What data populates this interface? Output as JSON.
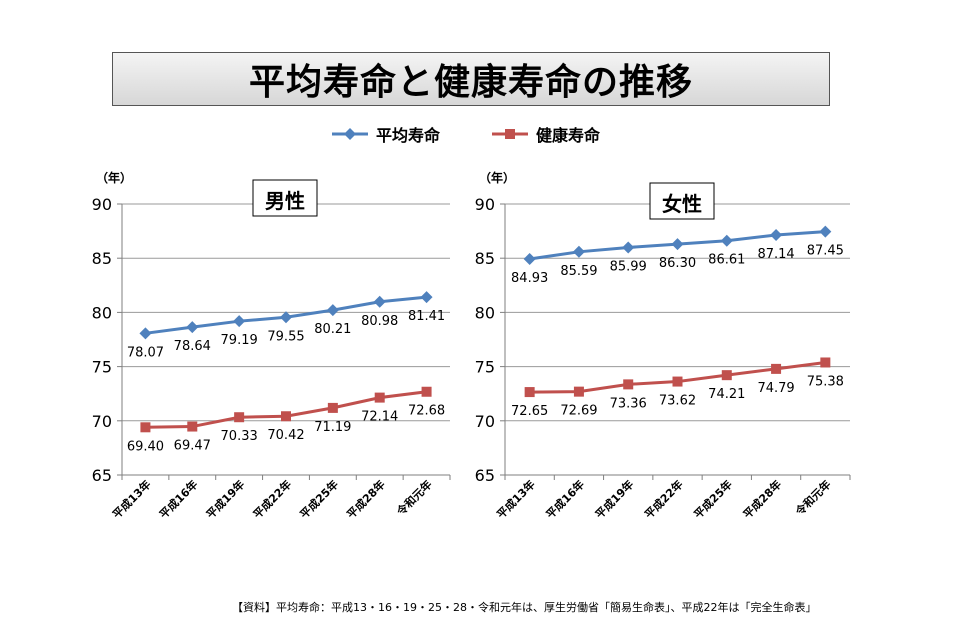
{
  "title": "平均寿命と健康寿命の推移",
  "legend": [
    {
      "label": "平均寿命",
      "color": "#4f81bd",
      "marker": "diamond"
    },
    {
      "label": "健康寿命",
      "color": "#c0504d",
      "marker": "square"
    }
  ],
  "footnote": "【資料】平均寿命：平成13・16・19・25・28・令和元年は、厚生労働省「簡易生命表」、平成22年は「完全生命表」",
  "chart_data": [
    {
      "type": "line",
      "title": "男性",
      "ylabel": "（年）",
      "ylim": [
        65,
        90
      ],
      "yticks": [
        "65",
        "70",
        "75",
        "80",
        "85",
        "90"
      ],
      "categories": [
        "平成13年",
        "平成16年",
        "平成19年",
        "平成22年",
        "平成25年",
        "平成28年",
        "令和元年"
      ],
      "series": [
        {
          "name": "平均寿命",
          "color": "#4f81bd",
          "marker": "diamond",
          "values": [
            78.07,
            78.64,
            79.19,
            79.55,
            80.21,
            80.98,
            81.41
          ],
          "labels": [
            "78.07",
            "78.64",
            "79.19",
            "79.55",
            "80.21",
            "80.98",
            "81.41"
          ]
        },
        {
          "name": "健康寿命",
          "color": "#c0504d",
          "marker": "square",
          "values": [
            69.4,
            69.47,
            70.33,
            70.42,
            71.19,
            72.14,
            72.68
          ],
          "labels": [
            "69.40",
            "69.47",
            "70.33",
            "70.42",
            "71.19",
            "72.14",
            "72.68"
          ]
        }
      ]
    },
    {
      "type": "line",
      "title": "女性",
      "ylabel": "（年）",
      "ylim": [
        65,
        90
      ],
      "yticks": [
        "65",
        "70",
        "75",
        "80",
        "85",
        "90"
      ],
      "categories": [
        "平成13年",
        "平成16年",
        "平成19年",
        "平成22年",
        "平成25年",
        "平成28年",
        "令和元年"
      ],
      "series": [
        {
          "name": "平均寿命",
          "color": "#4f81bd",
          "marker": "diamond",
          "values": [
            84.93,
            85.59,
            85.99,
            86.3,
            86.61,
            87.14,
            87.45
          ],
          "labels": [
            "84.93",
            "85.59",
            "85.99",
            "86.30",
            "86.61",
            "87.14",
            "87.45"
          ]
        },
        {
          "name": "健康寿命",
          "color": "#c0504d",
          "marker": "square",
          "values": [
            72.65,
            72.69,
            73.36,
            73.62,
            74.21,
            74.79,
            75.38
          ],
          "labels": [
            "72.65",
            "72.69",
            "73.36",
            "73.62",
            "74.21",
            "74.79",
            "75.38"
          ]
        }
      ]
    }
  ]
}
